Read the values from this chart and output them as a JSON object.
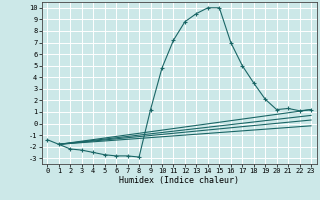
{
  "xlabel": "Humidex (Indice chaleur)",
  "background_color": "#cce8e8",
  "grid_color": "#ffffff",
  "line_color": "#1a6666",
  "xlim": [
    -0.5,
    23.5
  ],
  "ylim": [
    -3.5,
    10.5
  ],
  "xticks": [
    0,
    1,
    2,
    3,
    4,
    5,
    6,
    7,
    8,
    9,
    10,
    11,
    12,
    13,
    14,
    15,
    16,
    17,
    18,
    19,
    20,
    21,
    22,
    23
  ],
  "yticks": [
    -3,
    -2,
    -1,
    0,
    1,
    2,
    3,
    4,
    5,
    6,
    7,
    8,
    9,
    10
  ],
  "series": [
    [
      0,
      -1.4
    ],
    [
      1,
      -1.8
    ],
    [
      2,
      -2.2
    ],
    [
      3,
      -2.3
    ],
    [
      4,
      -2.5
    ],
    [
      5,
      -2.7
    ],
    [
      6,
      -2.8
    ],
    [
      7,
      -2.8
    ],
    [
      8,
      -2.9
    ],
    [
      9,
      1.2
    ],
    [
      10,
      4.8
    ],
    [
      11,
      7.2
    ],
    [
      12,
      8.8
    ],
    [
      13,
      9.5
    ],
    [
      14,
      10.0
    ],
    [
      15,
      10.0
    ],
    [
      16,
      7.0
    ],
    [
      17,
      5.0
    ],
    [
      18,
      3.5
    ],
    [
      19,
      2.1
    ],
    [
      20,
      1.2
    ],
    [
      21,
      1.3
    ],
    [
      22,
      1.1
    ],
    [
      23,
      1.2
    ]
  ],
  "fan_lines": [
    {
      "x0": 1,
      "y0": -1.8,
      "x1": 23,
      "y1": 1.2
    },
    {
      "x0": 1,
      "y0": -1.8,
      "x1": 23,
      "y1": 0.7
    },
    {
      "x0": 1,
      "y0": -1.8,
      "x1": 23,
      "y1": 0.3
    },
    {
      "x0": 1,
      "y0": -1.8,
      "x1": 23,
      "y1": -0.2
    }
  ],
  "xlabel_fontsize": 6.0,
  "tick_fontsize": 5.0,
  "line_width": 0.8,
  "marker_size": 3.0
}
